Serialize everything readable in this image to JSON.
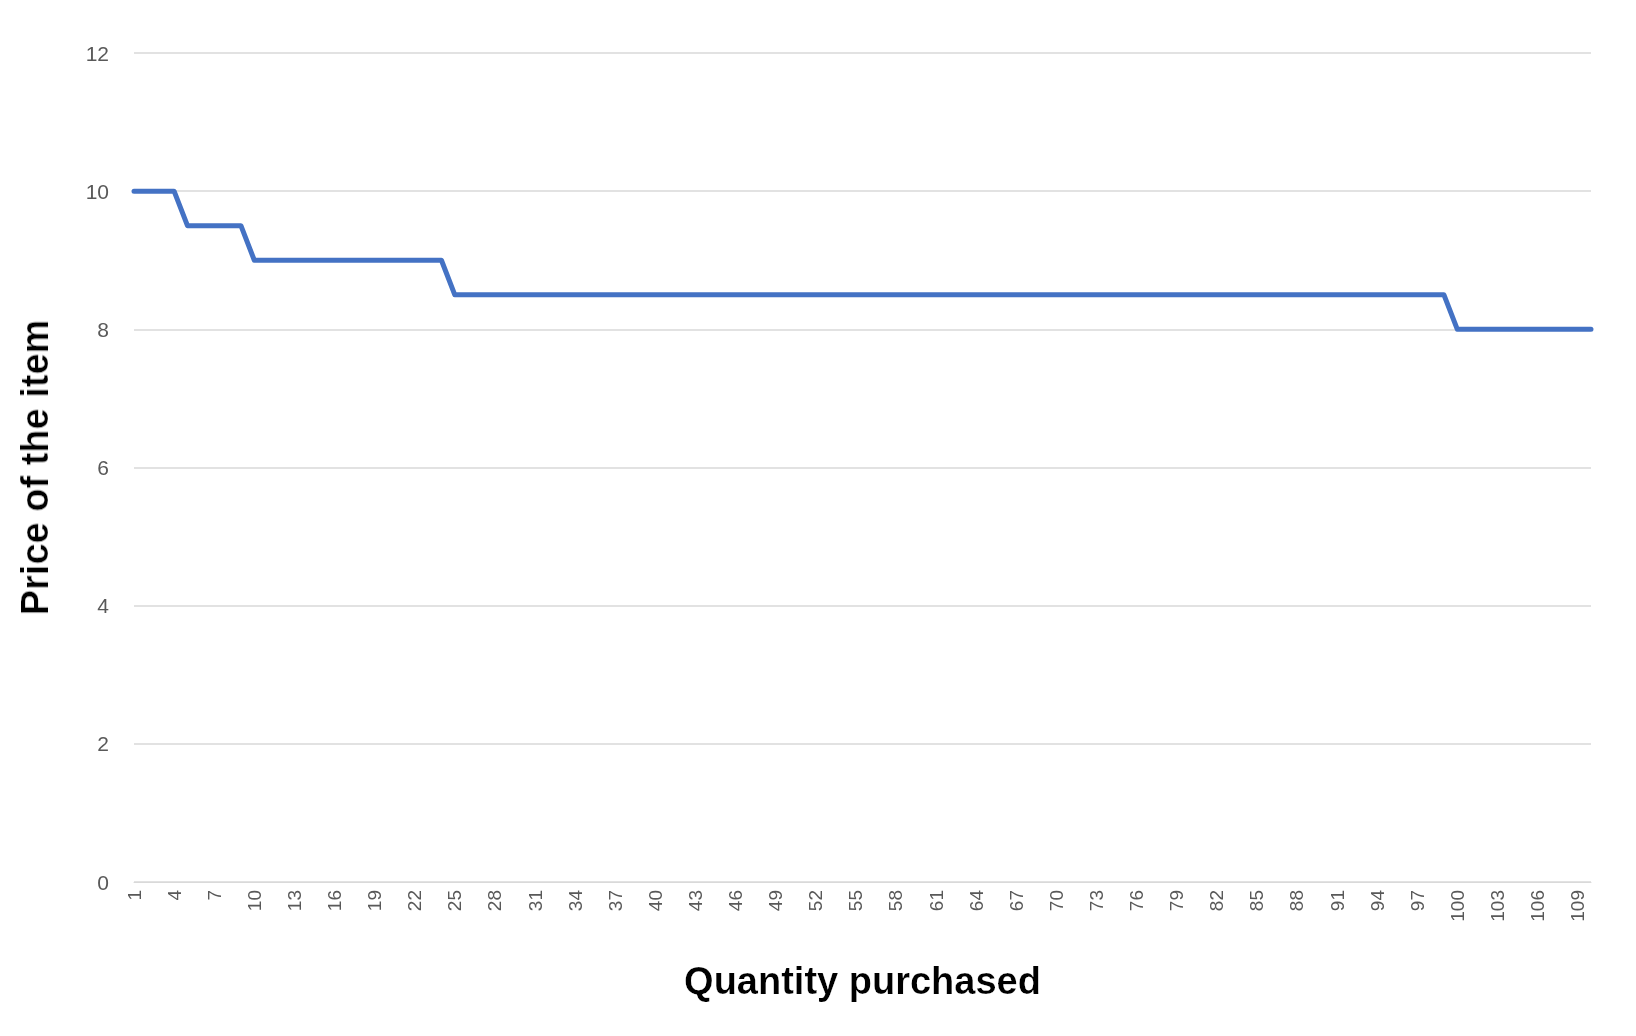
{
  "chart_data": {
    "type": "line",
    "xlabel": "Quantity purchased",
    "ylabel": "Price of the item",
    "categories": [
      "1",
      null,
      null,
      "4",
      null,
      null,
      "7",
      null,
      null,
      "10",
      null,
      null,
      "13",
      null,
      null,
      "16",
      null,
      null,
      "19",
      null,
      null,
      "22",
      null,
      null,
      "25",
      null,
      null,
      "28",
      null,
      null,
      "31",
      null,
      null,
      "34",
      null,
      null,
      "37",
      null,
      null,
      "40",
      null,
      null,
      "43",
      null,
      null,
      "46",
      null,
      null,
      "49",
      null,
      null,
      "52",
      null,
      null,
      "55",
      null,
      null,
      "58",
      null,
      null,
      "61",
      null,
      null,
      "64",
      null,
      null,
      "67",
      null,
      null,
      "70",
      null,
      null,
      "73",
      null,
      null,
      "76",
      null,
      null,
      "79",
      null,
      null,
      "82",
      null,
      null,
      "85",
      null,
      null,
      "88",
      null,
      null,
      "91",
      null,
      null,
      "94",
      null,
      null,
      "97",
      null,
      null,
      "100",
      null,
      null,
      "103",
      null,
      null,
      "106",
      null,
      null,
      "109",
      null
    ],
    "series": [
      {
        "color": "#4472c4",
        "values": [
          10,
          10,
          10,
          10,
          9.5,
          9.5,
          9.5,
          9.5,
          9.5,
          9,
          9,
          9,
          9,
          9,
          9,
          9,
          9,
          9,
          9,
          9,
          9,
          9,
          9,
          9,
          8.5,
          8.5,
          8.5,
          8.5,
          8.5,
          8.5,
          8.5,
          8.5,
          8.5,
          8.5,
          8.5,
          8.5,
          8.5,
          8.5,
          8.5,
          8.5,
          8.5,
          8.5,
          8.5,
          8.5,
          8.5,
          8.5,
          8.5,
          8.5,
          8.5,
          8.5,
          8.5,
          8.5,
          8.5,
          8.5,
          8.5,
          8.5,
          8.5,
          8.5,
          8.5,
          8.5,
          8.5,
          8.5,
          8.5,
          8.5,
          8.5,
          8.5,
          8.5,
          8.5,
          8.5,
          8.5,
          8.5,
          8.5,
          8.5,
          8.5,
          8.5,
          8.5,
          8.5,
          8.5,
          8.5,
          8.5,
          8.5,
          8.5,
          8.5,
          8.5,
          8.5,
          8.5,
          8.5,
          8.5,
          8.5,
          8.5,
          8.5,
          8.5,
          8.5,
          8.5,
          8.5,
          8.5,
          8.5,
          8.5,
          8.5,
          8,
          8,
          8,
          8,
          8,
          8,
          8,
          8,
          8,
          8,
          8
        ]
      }
    ],
    "ylim": [
      0,
      12
    ],
    "yticks": [
      0,
      2,
      4,
      6,
      8,
      10,
      12
    ],
    "grid": "y",
    "marker": "none",
    "line_style": "solid"
  }
}
